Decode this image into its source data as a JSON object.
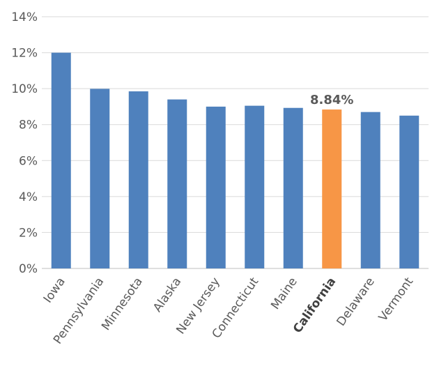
{
  "chart_data": {
    "type": "bar",
    "categories": [
      "Iowa",
      "Pennsylvania",
      "Minnesota",
      "Alaska",
      "New Jersey",
      "Connecticut",
      "Maine",
      "California",
      "Delaware",
      "Vermont"
    ],
    "values": [
      12.0,
      9.99,
      9.85,
      9.4,
      9.0,
      9.05,
      8.93,
      8.84,
      8.7,
      8.5
    ],
    "value_unit": "%",
    "ylim": [
      0,
      14
    ],
    "yticks": [
      0,
      2,
      4,
      6,
      8,
      10,
      12,
      14
    ],
    "ytick_labels": [
      "0%",
      "2%",
      "4%",
      "6%",
      "8%",
      "10%",
      "12%",
      "14%"
    ],
    "grid": true,
    "highlight": {
      "category": "California",
      "label": "8.84%"
    },
    "colors": {
      "bar": "#4f81bd",
      "highlight": "#f79646",
      "grid": "#d9d9d9",
      "text": "#595959"
    },
    "title": "",
    "xlabel": "",
    "ylabel": ""
  }
}
